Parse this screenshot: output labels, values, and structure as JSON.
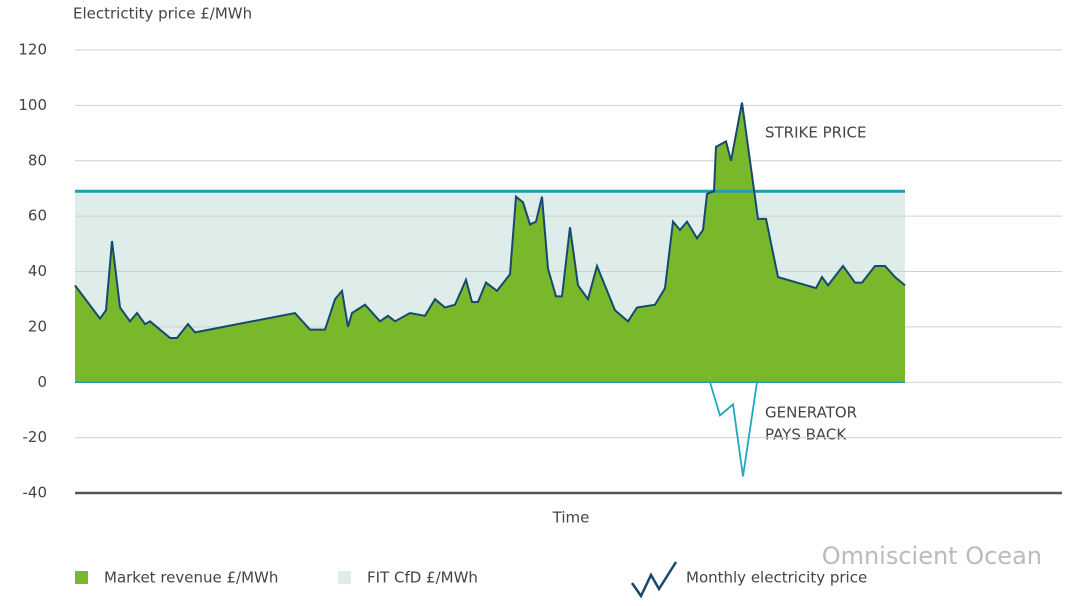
{
  "chart_data": {
    "type": "area",
    "ylabel": "Electrictity price £/MWh",
    "xlabel": "Time",
    "ylim": [
      -40,
      120
    ],
    "yticks": [
      -40,
      -20,
      0,
      20,
      40,
      60,
      80,
      100,
      120
    ],
    "xlim": [
      0,
      166
    ],
    "grid": true,
    "series": [
      {
        "name": "Monthly electricity price",
        "color": "#17496e",
        "fill": "#79b82a",
        "fill_name": "Market revenue £/MWh",
        "x": [
          0,
          5,
          6.2,
          7.4,
          9,
          11,
          12.4,
          14,
          15,
          19,
          20.4,
          22.6,
          24,
          44,
          47,
          50,
          52,
          53.4,
          54.6,
          55.4,
          58,
          61,
          62.6,
          64,
          67,
          70,
          72,
          74,
          76,
          78.2,
          79.4,
          80.6,
          82.2,
          84.4,
          87,
          88.2,
          89.6,
          91,
          92.2,
          93.4,
          94.6,
          96.2,
          97.4,
          99,
          100.6,
          102.6,
          104.4,
          108,
          110.6,
          112.4,
          116,
          118,
          119.6,
          121,
          122.4,
          124.4,
          125.6,
          126.4,
          127.8,
          128.2,
          130.2,
          131.2,
          133.4,
          136.6,
          138.2,
          140.6,
          148.2,
          149.4,
          150.6,
          153.6,
          156,
          157.4,
          160,
          162,
          164,
          166
        ],
        "values": [
          35,
          23,
          26,
          51,
          27,
          22,
          25,
          21,
          22,
          16,
          16,
          21,
          18,
          25,
          19,
          19,
          30,
          33,
          20,
          25,
          28,
          22,
          24,
          22,
          25,
          24,
          30,
          27,
          28,
          37,
          29,
          29,
          36,
          33,
          39,
          67,
          65,
          57,
          58,
          67,
          41,
          31,
          31,
          56,
          35,
          30,
          42,
          26,
          22,
          27,
          28,
          34,
          58,
          55,
          58,
          52,
          55,
          68,
          69,
          85,
          87,
          80,
          101,
          59,
          59,
          38,
          34,
          38,
          35,
          42,
          36,
          36,
          42,
          42,
          38,
          35
        ]
      },
      {
        "name": "FIT CfD £/MWh",
        "color": "#deedea",
        "strike": 69,
        "line_color": "#1f9cb2"
      },
      {
        "name": "GENERATOR PAYS BACK",
        "color": "#21a6c4",
        "x": [
          127,
          129,
          131.6,
          133.6,
          136.4
        ],
        "values": [
          0,
          -12,
          -8,
          -34,
          0
        ]
      }
    ],
    "annotations": {
      "strike": "STRIKE PRICE",
      "payback": [
        "GENERATOR",
        "PAYS BACK"
      ]
    },
    "watermark": "Omniscient Ocean"
  }
}
